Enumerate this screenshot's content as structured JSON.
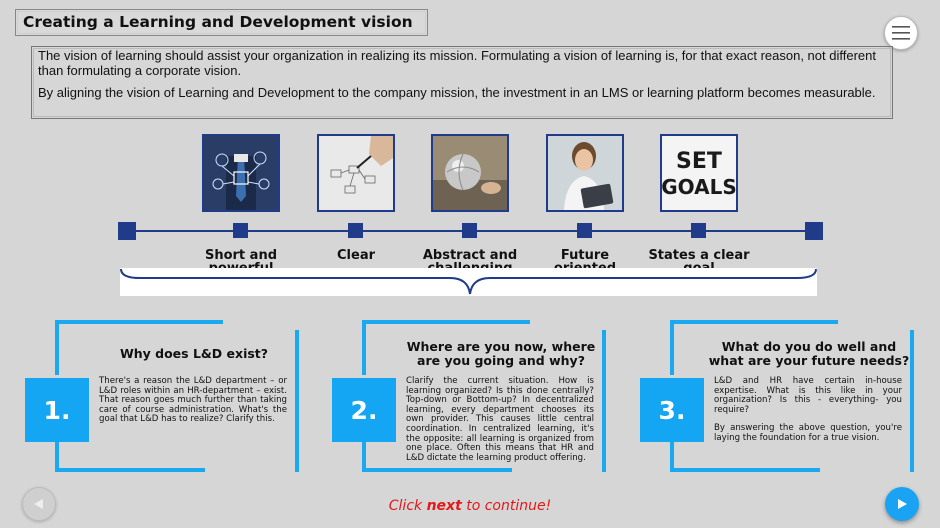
{
  "header": {
    "title": "Creating a Learning and Development vision"
  },
  "menu": {
    "icon": "hamburger-icon"
  },
  "intro": {
    "paragraph1": "The vision of learning should assist your organization in realizing its mission. Formulating a vision of learning is, for that exact reason, not different than formulating a corporate vision.",
    "paragraph2": "By aligning the vision of Learning and Development to the company mission, the investment in an LMS or learning platform becomes measurable."
  },
  "timeline": {
    "items": [
      {
        "label": "Short and powerful",
        "image": "businessman-network-photo"
      },
      {
        "label": "Clear",
        "image": "hand-drawing-diagram-photo"
      },
      {
        "label": "Abstract and challenging",
        "image": "silver-globe-photo"
      },
      {
        "label": "Future oriented",
        "image": "smiling-woman-tablet-photo"
      },
      {
        "label": "States a clear goal",
        "image": "set-goals-photo"
      }
    ],
    "set_goals_text_1": "SET",
    "set_goals_text_2": "GOALS"
  },
  "cards": [
    {
      "number": "1.",
      "title": "Why does L&D exist?",
      "body": "There's a reason the L&D department – or L&D roles within an HR-department – exist. That reason goes much further than taking care of course administration. What's the goal that L&D has to realize? Clarify this."
    },
    {
      "number": "2.",
      "title": "Where are you now, where are you going and why?",
      "body": "Clarify the current situation. How is learning organized? Is this done centrally? Top-down or Bottom-up? In decentralized learning, every department chooses its own provider. This causes little central coordination. In centralized learning, it's the opposite: all learning is organized from one place. Often this means that HR and L&D dictate the learning product offering."
    },
    {
      "number": "3.",
      "title": "What do you do well and what are your future needs?",
      "body": "L&D and HR have certain in-house expertise. What is this like in your organization? Is this - everything- you require?",
      "body2": "By answering the above question, you're laying the foundation for a true vision."
    }
  ],
  "footer": {
    "continue_pre": "Click ",
    "continue_bold": "next",
    "continue_post": " to continue!",
    "prev_icon": "play-left-icon",
    "next_icon": "play-right-icon"
  }
}
